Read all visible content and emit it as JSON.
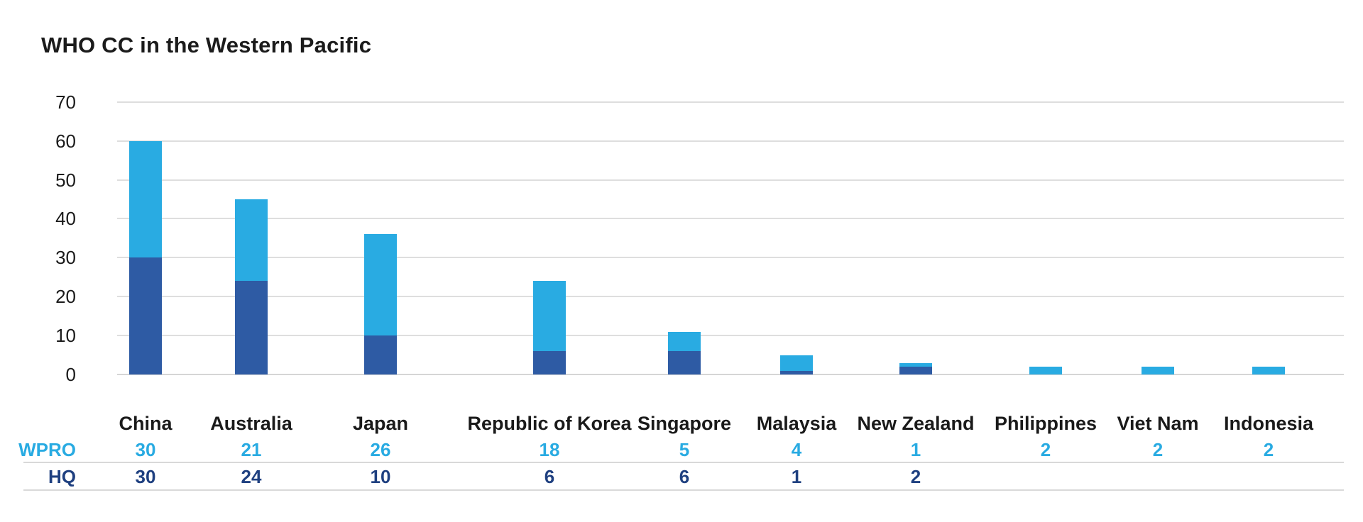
{
  "title": "WHO CC in the Western Pacific",
  "colors": {
    "wpro": "#29ABE2",
    "hq_bar": "#2E5BA4",
    "hq_text": "#1F4080",
    "text": "#1A1A1A",
    "gridline": "#DEDEDE",
    "gridline_base": "#D5D5D5",
    "divider": "#D9D9D9"
  },
  "chart_data": {
    "type": "bar",
    "stacked": true,
    "title": "WHO CC in the Western Pacific",
    "xlabel": "",
    "ylabel": "",
    "ylim": [
      0,
      70
    ],
    "y_ticks": [
      0,
      10,
      20,
      30,
      40,
      50,
      60,
      70
    ],
    "grid": true,
    "legend_position": "table-row-labels-left",
    "categories": [
      "China",
      "Australia",
      "Japan",
      "Republic of Korea",
      "Singapore",
      "Malaysia",
      "New Zealand",
      "Philippines",
      "Viet Nam",
      "Indonesia"
    ],
    "series": [
      {
        "name": "WPRO",
        "color": "#29ABE2",
        "stack_position": "top",
        "values": [
          30,
          21,
          26,
          18,
          5,
          4,
          1,
          2,
          2,
          2
        ]
      },
      {
        "name": "HQ",
        "color": "#2E5BA4",
        "stack_position": "bottom",
        "values": [
          30,
          24,
          10,
          6,
          6,
          1,
          2,
          null,
          null,
          null
        ]
      }
    ],
    "totals": [
      60,
      45,
      36,
      24,
      11,
      5,
      3,
      2,
      2,
      2
    ]
  },
  "table": {
    "rows": [
      {
        "label": "WPRO",
        "values": [
          "30",
          "21",
          "26",
          "18",
          "5",
          "4",
          "1",
          "2",
          "2",
          "2"
        ]
      },
      {
        "label": "HQ",
        "values": [
          "30",
          "24",
          "10",
          "6",
          "6",
          "1",
          "2",
          "",
          "",
          ""
        ]
      }
    ]
  }
}
